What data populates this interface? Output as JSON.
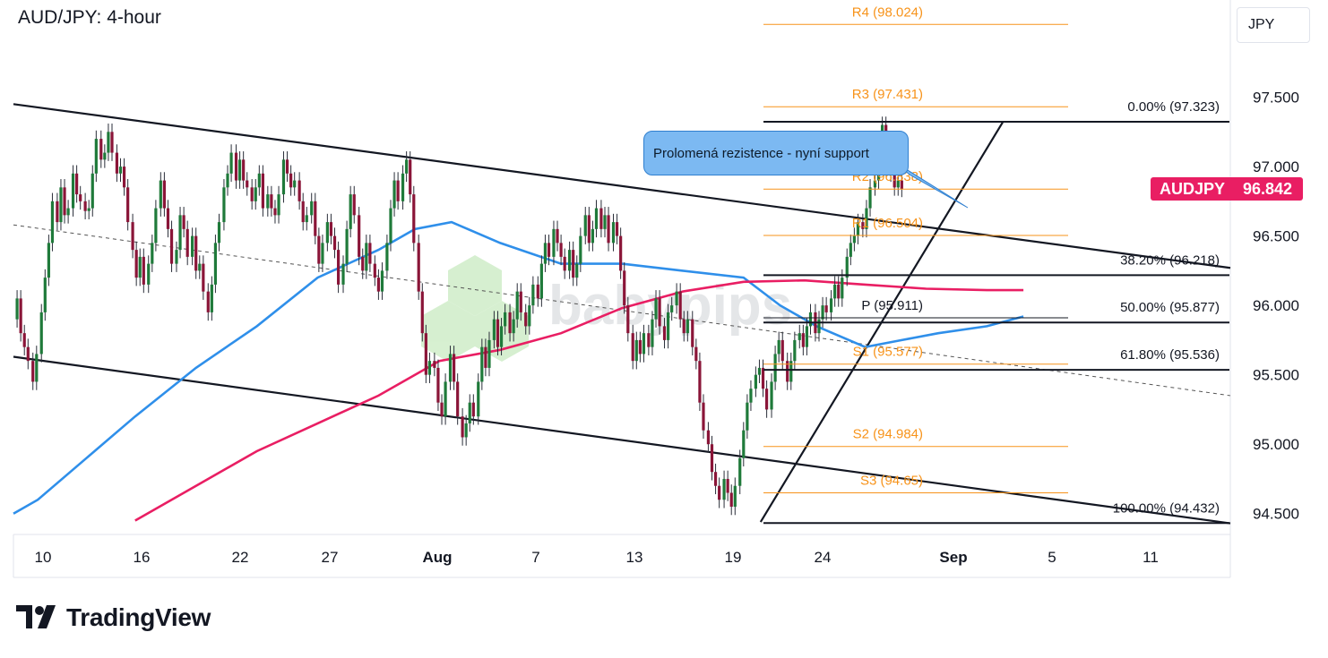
{
  "title": "AUD/JPY: 4-hour",
  "currency_label": "JPY",
  "price_tag": {
    "symbol": "AUDJPY",
    "value": "96.842",
    "color": "#e91e63"
  },
  "annotation": "Prolomená rezistence - nyní support",
  "watermark": "babypips",
  "brand": "TradingView",
  "chart_data": {
    "type": "candlestick",
    "x_ticks": [
      "10",
      "16",
      "22",
      "27",
      "Aug",
      "7",
      "13",
      "19",
      "24",
      "Sep",
      "5",
      "11"
    ],
    "y_ticks": [
      "97.500",
      "97.000",
      "96.500",
      "96.000",
      "95.500",
      "95.000",
      "94.500"
    ],
    "ylim": [
      94.35,
      98.2
    ],
    "last_price": 96.842,
    "pivots": [
      {
        "label": "R4 (98.024)",
        "value": 98.024,
        "color": "#f7931a"
      },
      {
        "label": "R3 (97.431)",
        "value": 97.431,
        "color": "#f7931a"
      },
      {
        "label": "R2 (96.838)",
        "value": 96.838,
        "color": "#f7931a"
      },
      {
        "label": "R1 (96.504)",
        "value": 96.504,
        "color": "#f7931a"
      },
      {
        "label": "P (95.911)",
        "value": 95.911,
        "color": "#131722"
      },
      {
        "label": "S1 (95.577)",
        "value": 95.577,
        "color": "#f7931a"
      },
      {
        "label": "S2 (94.984)",
        "value": 94.984,
        "color": "#f7931a"
      },
      {
        "label": "S3 (94.65)",
        "value": 94.65,
        "color": "#f7931a"
      }
    ],
    "fibonacci": [
      {
        "label": "0.00% (97.323)",
        "value": 97.323
      },
      {
        "label": "38.20% (96.218)",
        "value": 96.218
      },
      {
        "label": "50.00% (95.877)",
        "value": 95.877
      },
      {
        "label": "61.80% (95.536)",
        "value": 95.536
      },
      {
        "label": "100.00% (94.432)",
        "value": 94.432
      }
    ],
    "moving_averages": [
      {
        "color": "#2f8fea",
        "points": [
          [
            0,
            94.5
          ],
          [
            0.02,
            94.6
          ],
          [
            0.06,
            94.9
          ],
          [
            0.1,
            95.2
          ],
          [
            0.15,
            95.55
          ],
          [
            0.2,
            95.85
          ],
          [
            0.25,
            96.2
          ],
          [
            0.3,
            96.4
          ],
          [
            0.33,
            96.55
          ],
          [
            0.36,
            96.6
          ],
          [
            0.4,
            96.45
          ],
          [
            0.45,
            96.3
          ],
          [
            0.5,
            96.3
          ],
          [
            0.55,
            96.25
          ],
          [
            0.6,
            96.2
          ],
          [
            0.63,
            96.0
          ],
          [
            0.66,
            95.85
          ],
          [
            0.7,
            95.7
          ],
          [
            0.73,
            95.75
          ],
          [
            0.76,
            95.8
          ],
          [
            0.8,
            95.85
          ],
          [
            0.83,
            95.92
          ]
        ]
      },
      {
        "color": "#e91e63",
        "points": [
          [
            0.1,
            94.45
          ],
          [
            0.15,
            94.7
          ],
          [
            0.2,
            94.95
          ],
          [
            0.25,
            95.15
          ],
          [
            0.3,
            95.35
          ],
          [
            0.35,
            95.6
          ],
          [
            0.4,
            95.68
          ],
          [
            0.45,
            95.8
          ],
          [
            0.5,
            95.98
          ],
          [
            0.55,
            96.1
          ],
          [
            0.6,
            96.17
          ],
          [
            0.65,
            96.18
          ],
          [
            0.7,
            96.15
          ],
          [
            0.75,
            96.12
          ],
          [
            0.8,
            96.11
          ],
          [
            0.83,
            96.11
          ]
        ]
      }
    ],
    "trend_lines": [
      {
        "from": [
          0,
          97.45
        ],
        "to": [
          1,
          96.27
        ]
      },
      {
        "from": [
          0,
          95.63
        ],
        "to": [
          1,
          94.43
        ]
      },
      {
        "from": [
          0,
          96.58
        ],
        "to": [
          1,
          95.35
        ],
        "dashed": true
      },
      {
        "from": [
          0.614,
          94.44
        ],
        "to": [
          0.813,
          97.32
        ]
      }
    ],
    "candles": [
      [
        0.003,
        95.9,
        96.05
      ],
      [
        0.006,
        96.05,
        95.8
      ],
      [
        0.009,
        95.8,
        95.7
      ],
      [
        0.012,
        95.7,
        95.6
      ],
      [
        0.016,
        95.6,
        95.45
      ],
      [
        0.019,
        95.45,
        95.65
      ],
      [
        0.023,
        95.65,
        95.95
      ],
      [
        0.026,
        95.95,
        96.2
      ],
      [
        0.029,
        96.2,
        96.45
      ],
      [
        0.032,
        96.45,
        96.75
      ],
      [
        0.036,
        96.75,
        96.6
      ],
      [
        0.039,
        96.6,
        96.85
      ],
      [
        0.042,
        96.85,
        96.65
      ],
      [
        0.045,
        96.65,
        96.7
      ],
      [
        0.049,
        96.7,
        96.95
      ],
      [
        0.052,
        96.95,
        96.8
      ],
      [
        0.055,
        96.8,
        96.75
      ],
      [
        0.059,
        96.75,
        96.68
      ],
      [
        0.062,
        96.68,
        96.7
      ],
      [
        0.065,
        96.7,
        96.95
      ],
      [
        0.068,
        96.95,
        97.2
      ],
      [
        0.072,
        97.2,
        97.05
      ],
      [
        0.075,
        97.05,
        97.1
      ],
      [
        0.078,
        97.1,
        97.25
      ],
      [
        0.081,
        97.25,
        97.1
      ],
      [
        0.085,
        97.1,
        96.95
      ],
      [
        0.088,
        96.95,
        97.0
      ],
      [
        0.091,
        97.0,
        96.85
      ],
      [
        0.094,
        96.85,
        96.6
      ],
      [
        0.098,
        96.6,
        96.4
      ],
      [
        0.101,
        96.4,
        96.2
      ],
      [
        0.104,
        96.2,
        96.35
      ],
      [
        0.107,
        96.35,
        96.15
      ],
      [
        0.111,
        96.15,
        96.3
      ],
      [
        0.114,
        96.3,
        96.45
      ],
      [
        0.117,
        96.45,
        96.7
      ],
      [
        0.121,
        96.7,
        96.9
      ],
      [
        0.124,
        96.9,
        96.7
      ],
      [
        0.127,
        96.7,
        96.55
      ],
      [
        0.13,
        96.55,
        96.3
      ],
      [
        0.134,
        96.3,
        96.4
      ],
      [
        0.137,
        96.4,
        96.65
      ],
      [
        0.14,
        96.65,
        96.55
      ],
      [
        0.143,
        96.55,
        96.35
      ],
      [
        0.147,
        96.35,
        96.5
      ],
      [
        0.15,
        96.5,
        96.25
      ],
      [
        0.153,
        96.25,
        96.3
      ],
      [
        0.156,
        96.3,
        96.1
      ],
      [
        0.16,
        96.1,
        95.95
      ],
      [
        0.163,
        95.95,
        96.15
      ],
      [
        0.166,
        96.15,
        96.45
      ],
      [
        0.169,
        96.45,
        96.6
      ],
      [
        0.173,
        96.6,
        96.85
      ],
      [
        0.176,
        96.85,
        96.95
      ],
      [
        0.179,
        96.95,
        97.1
      ],
      [
        0.183,
        97.1,
        96.9
      ],
      [
        0.186,
        96.9,
        97.05
      ],
      [
        0.189,
        97.05,
        96.9
      ],
      [
        0.192,
        96.9,
        96.85
      ],
      [
        0.196,
        96.85,
        96.75
      ],
      [
        0.199,
        96.75,
        96.85
      ],
      [
        0.202,
        96.85,
        96.95
      ],
      [
        0.205,
        96.95,
        96.7
      ],
      [
        0.209,
        96.7,
        96.8
      ],
      [
        0.212,
        96.8,
        96.7
      ],
      [
        0.215,
        96.7,
        96.65
      ],
      [
        0.218,
        96.65,
        96.8
      ],
      [
        0.222,
        96.8,
        97.05
      ],
      [
        0.225,
        97.05,
        96.95
      ],
      [
        0.228,
        96.95,
        96.85
      ],
      [
        0.231,
        96.85,
        96.9
      ],
      [
        0.235,
        96.9,
        96.75
      ],
      [
        0.238,
        96.75,
        96.6
      ],
      [
        0.241,
        96.6,
        96.65
      ],
      [
        0.245,
        96.65,
        96.75
      ],
      [
        0.248,
        96.75,
        96.5
      ],
      [
        0.251,
        96.5,
        96.3
      ],
      [
        0.254,
        96.3,
        96.45
      ],
      [
        0.258,
        96.45,
        96.6
      ],
      [
        0.261,
        96.6,
        96.5
      ],
      [
        0.264,
        96.5,
        96.4
      ],
      [
        0.267,
        96.4,
        96.15
      ],
      [
        0.271,
        96.15,
        96.3
      ],
      [
        0.274,
        96.3,
        96.55
      ],
      [
        0.277,
        96.55,
        96.8
      ],
      [
        0.28,
        96.8,
        96.65
      ],
      [
        0.284,
        96.65,
        96.35
      ],
      [
        0.287,
        96.35,
        96.25
      ],
      [
        0.29,
        96.25,
        96.45
      ],
      [
        0.293,
        96.45,
        96.3
      ],
      [
        0.297,
        96.3,
        96.2
      ],
      [
        0.3,
        96.2,
        96.1
      ],
      [
        0.303,
        96.1,
        96.25
      ],
      [
        0.307,
        96.25,
        96.45
      ],
      [
        0.31,
        96.45,
        96.7
      ],
      [
        0.313,
        96.7,
        96.9
      ],
      [
        0.316,
        96.9,
        96.75
      ],
      [
        0.32,
        96.75,
        96.95
      ],
      [
        0.323,
        96.95,
        97.05
      ],
      [
        0.326,
        97.05,
        96.8
      ],
      [
        0.329,
        96.8,
        96.45
      ],
      [
        0.333,
        96.45,
        96.1
      ],
      [
        0.336,
        96.1,
        95.8
      ],
      [
        0.339,
        95.8,
        95.5
      ],
      [
        0.342,
        95.5,
        95.6
      ],
      [
        0.346,
        95.6,
        95.55
      ],
      [
        0.349,
        95.55,
        95.3
      ],
      [
        0.352,
        95.3,
        95.2
      ],
      [
        0.355,
        95.2,
        95.45
      ],
      [
        0.359,
        95.45,
        95.65
      ],
      [
        0.362,
        95.65,
        95.45
      ],
      [
        0.365,
        95.45,
        95.2
      ],
      [
        0.369,
        95.2,
        95.05
      ],
      [
        0.372,
        95.05,
        95.15
      ],
      [
        0.375,
        95.15,
        95.3
      ],
      [
        0.378,
        95.3,
        95.2
      ],
      [
        0.382,
        95.2,
        95.45
      ],
      [
        0.385,
        95.45,
        95.7
      ],
      [
        0.388,
        95.7,
        95.55
      ],
      [
        0.391,
        95.55,
        95.75
      ],
      [
        0.395,
        95.75,
        95.9
      ],
      [
        0.398,
        95.9,
        95.7
      ],
      [
        0.401,
        95.7,
        95.85
      ],
      [
        0.404,
        95.85,
        95.95
      ],
      [
        0.408,
        95.95,
        95.8
      ],
      [
        0.411,
        95.8,
        95.9
      ],
      [
        0.414,
        95.9,
        96.1
      ],
      [
        0.417,
        96.1,
        95.95
      ],
      [
        0.421,
        95.95,
        95.85
      ],
      [
        0.424,
        95.85,
        96.0
      ],
      [
        0.427,
        96.0,
        96.15
      ],
      [
        0.431,
        96.15,
        96.05
      ],
      [
        0.434,
        96.05,
        96.3
      ],
      [
        0.437,
        96.3,
        96.45
      ],
      [
        0.44,
        96.45,
        96.35
      ],
      [
        0.444,
        96.35,
        96.55
      ],
      [
        0.447,
        96.55,
        96.45
      ],
      [
        0.45,
        96.45,
        96.35
      ],
      [
        0.453,
        96.35,
        96.25
      ],
      [
        0.457,
        96.25,
        96.4
      ],
      [
        0.46,
        96.4,
        96.2
      ],
      [
        0.463,
        96.2,
        96.3
      ],
      [
        0.466,
        96.3,
        96.5
      ],
      [
        0.47,
        96.5,
        96.65
      ],
      [
        0.473,
        96.65,
        96.45
      ],
      [
        0.476,
        96.45,
        96.55
      ],
      [
        0.479,
        96.55,
        96.7
      ],
      [
        0.483,
        96.7,
        96.55
      ],
      [
        0.486,
        96.55,
        96.65
      ],
      [
        0.489,
        96.65,
        96.45
      ],
      [
        0.493,
        96.45,
        96.6
      ],
      [
        0.496,
        96.6,
        96.5
      ],
      [
        0.499,
        96.5,
        96.25
      ],
      [
        0.502,
        96.25,
        96.0
      ],
      [
        0.505,
        96.0,
        95.8
      ],
      [
        0.509,
        95.8,
        95.6
      ],
      [
        0.512,
        95.6,
        95.75
      ],
      [
        0.515,
        95.75,
        95.65
      ],
      [
        0.518,
        95.65,
        95.8
      ],
      [
        0.522,
        95.8,
        95.7
      ],
      [
        0.525,
        95.7,
        95.9
      ],
      [
        0.528,
        95.9,
        96.05
      ],
      [
        0.531,
        96.05,
        95.85
      ],
      [
        0.535,
        95.85,
        95.75
      ],
      [
        0.538,
        95.75,
        95.95
      ],
      [
        0.541,
        95.95,
        96.0
      ],
      [
        0.545,
        96.0,
        96.1
      ],
      [
        0.548,
        96.1,
        95.9
      ],
      [
        0.551,
        95.9,
        95.8
      ],
      [
        0.554,
        95.8,
        95.9
      ],
      [
        0.558,
        95.9,
        95.7
      ],
      [
        0.561,
        95.7,
        95.6
      ],
      [
        0.564,
        95.6,
        95.3
      ],
      [
        0.567,
        95.3,
        95.1
      ],
      [
        0.571,
        95.1,
        95.0
      ],
      [
        0.574,
        95.0,
        94.8
      ],
      [
        0.577,
        94.8,
        94.7
      ],
      [
        0.58,
        94.7,
        94.6
      ],
      [
        0.584,
        94.6,
        94.75
      ],
      [
        0.587,
        94.75,
        94.65
      ],
      [
        0.59,
        94.65,
        94.55
      ],
      [
        0.593,
        94.55,
        94.7
      ],
      [
        0.597,
        94.7,
        94.9
      ],
      [
        0.6,
        94.9,
        95.1
      ],
      [
        0.603,
        95.1,
        95.3
      ],
      [
        0.606,
        95.3,
        95.4
      ],
      [
        0.61,
        95.4,
        95.5
      ],
      [
        0.613,
        95.5,
        95.55
      ],
      [
        0.616,
        95.55,
        95.4
      ],
      [
        0.619,
        95.4,
        95.25
      ],
      [
        0.623,
        95.25,
        95.45
      ],
      [
        0.626,
        95.45,
        95.65
      ],
      [
        0.629,
        95.65,
        95.75
      ],
      [
        0.632,
        95.75,
        95.6
      ],
      [
        0.636,
        95.6,
        95.45
      ],
      [
        0.639,
        95.45,
        95.6
      ],
      [
        0.642,
        95.6,
        95.75
      ],
      [
        0.646,
        95.75,
        95.8
      ],
      [
        0.649,
        95.8,
        95.7
      ],
      [
        0.652,
        95.7,
        95.85
      ],
      [
        0.655,
        95.85,
        95.95
      ],
      [
        0.659,
        95.95,
        95.8
      ],
      [
        0.662,
        95.8,
        95.9
      ],
      [
        0.665,
        95.9,
        96.0
      ],
      [
        0.668,
        96.0,
        95.95
      ],
      [
        0.672,
        95.95,
        96.05
      ],
      [
        0.675,
        96.05,
        96.15
      ],
      [
        0.678,
        96.15,
        96.05
      ],
      [
        0.681,
        96.05,
        96.2
      ],
      [
        0.685,
        96.2,
        96.35
      ],
      [
        0.688,
        96.35,
        96.45
      ],
      [
        0.691,
        96.45,
        96.5
      ],
      [
        0.694,
        96.5,
        96.6
      ],
      [
        0.698,
        96.6,
        96.55
      ],
      [
        0.701,
        96.55,
        96.7
      ],
      [
        0.704,
        96.7,
        96.85
      ],
      [
        0.708,
        96.85,
        96.9
      ],
      [
        0.711,
        96.9,
        97.1
      ],
      [
        0.714,
        97.1,
        97.3
      ],
      [
        0.717,
        97.3,
        97.15
      ],
      [
        0.721,
        97.15,
        96.95
      ],
      [
        0.724,
        96.95,
        96.85
      ],
      [
        0.727,
        96.85,
        96.9
      ],
      [
        0.73,
        96.9,
        96.84
      ]
    ]
  }
}
